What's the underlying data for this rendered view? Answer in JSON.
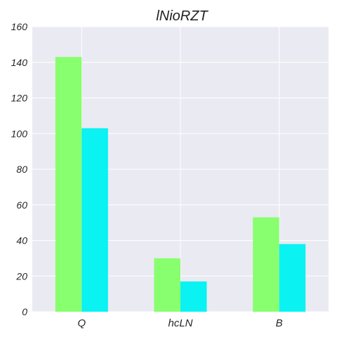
{
  "chart_data": {
    "type": "bar",
    "title": "lNioRZT",
    "xlabel": "",
    "ylabel": "",
    "categories": [
      "Q",
      "hcLN",
      "B"
    ],
    "series": [
      {
        "values": [
          143,
          30,
          53
        ],
        "color": "#88ff6e"
      },
      {
        "values": [
          103,
          17,
          38
        ],
        "color": "#0af2f2"
      }
    ],
    "ylim": [
      0,
      160
    ],
    "yticks": [
      "0",
      "20",
      "40",
      "60",
      "80",
      "100",
      "120",
      "140",
      "160"
    ],
    "grid": true,
    "background": "#eaeaf2",
    "legend": "none"
  }
}
